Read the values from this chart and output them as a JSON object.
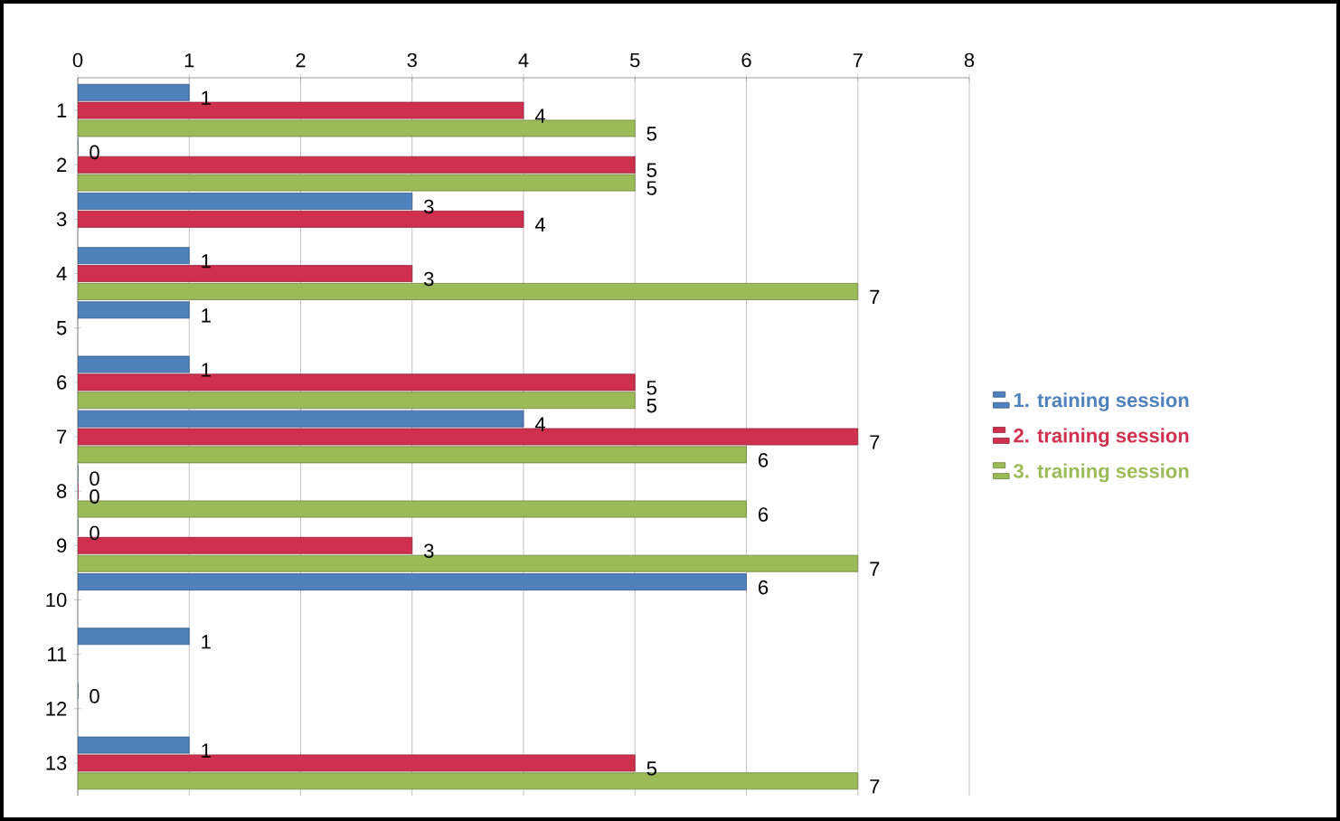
{
  "chart_data": {
    "type": "bar",
    "orientation": "horizontal",
    "categories": [
      "1",
      "2",
      "3",
      "4",
      "5",
      "6",
      "7",
      "8",
      "9",
      "10",
      "11",
      "12",
      "13"
    ],
    "series": [
      {
        "name": "1. training session",
        "color": "#4f81bd",
        "values": [
          1,
          0,
          3,
          1,
          1,
          1,
          4,
          0,
          0,
          6,
          1,
          0,
          1
        ]
      },
      {
        "name": "2. training session",
        "color": "#d0304f",
        "values": [
          4,
          5,
          4,
          3,
          null,
          5,
          7,
          0,
          3,
          null,
          null,
          null,
          5
        ]
      },
      {
        "name": "3. training session",
        "color": "#9bbb59",
        "values": [
          5,
          5,
          null,
          7,
          null,
          5,
          6,
          6,
          7,
          null,
          null,
          null,
          7
        ]
      }
    ],
    "xlim": [
      0,
      8
    ],
    "xticks": [
      0,
      1,
      2,
      3,
      4,
      5,
      6,
      7,
      8
    ],
    "grid": "x",
    "legend": "right",
    "data_labels": true
  }
}
